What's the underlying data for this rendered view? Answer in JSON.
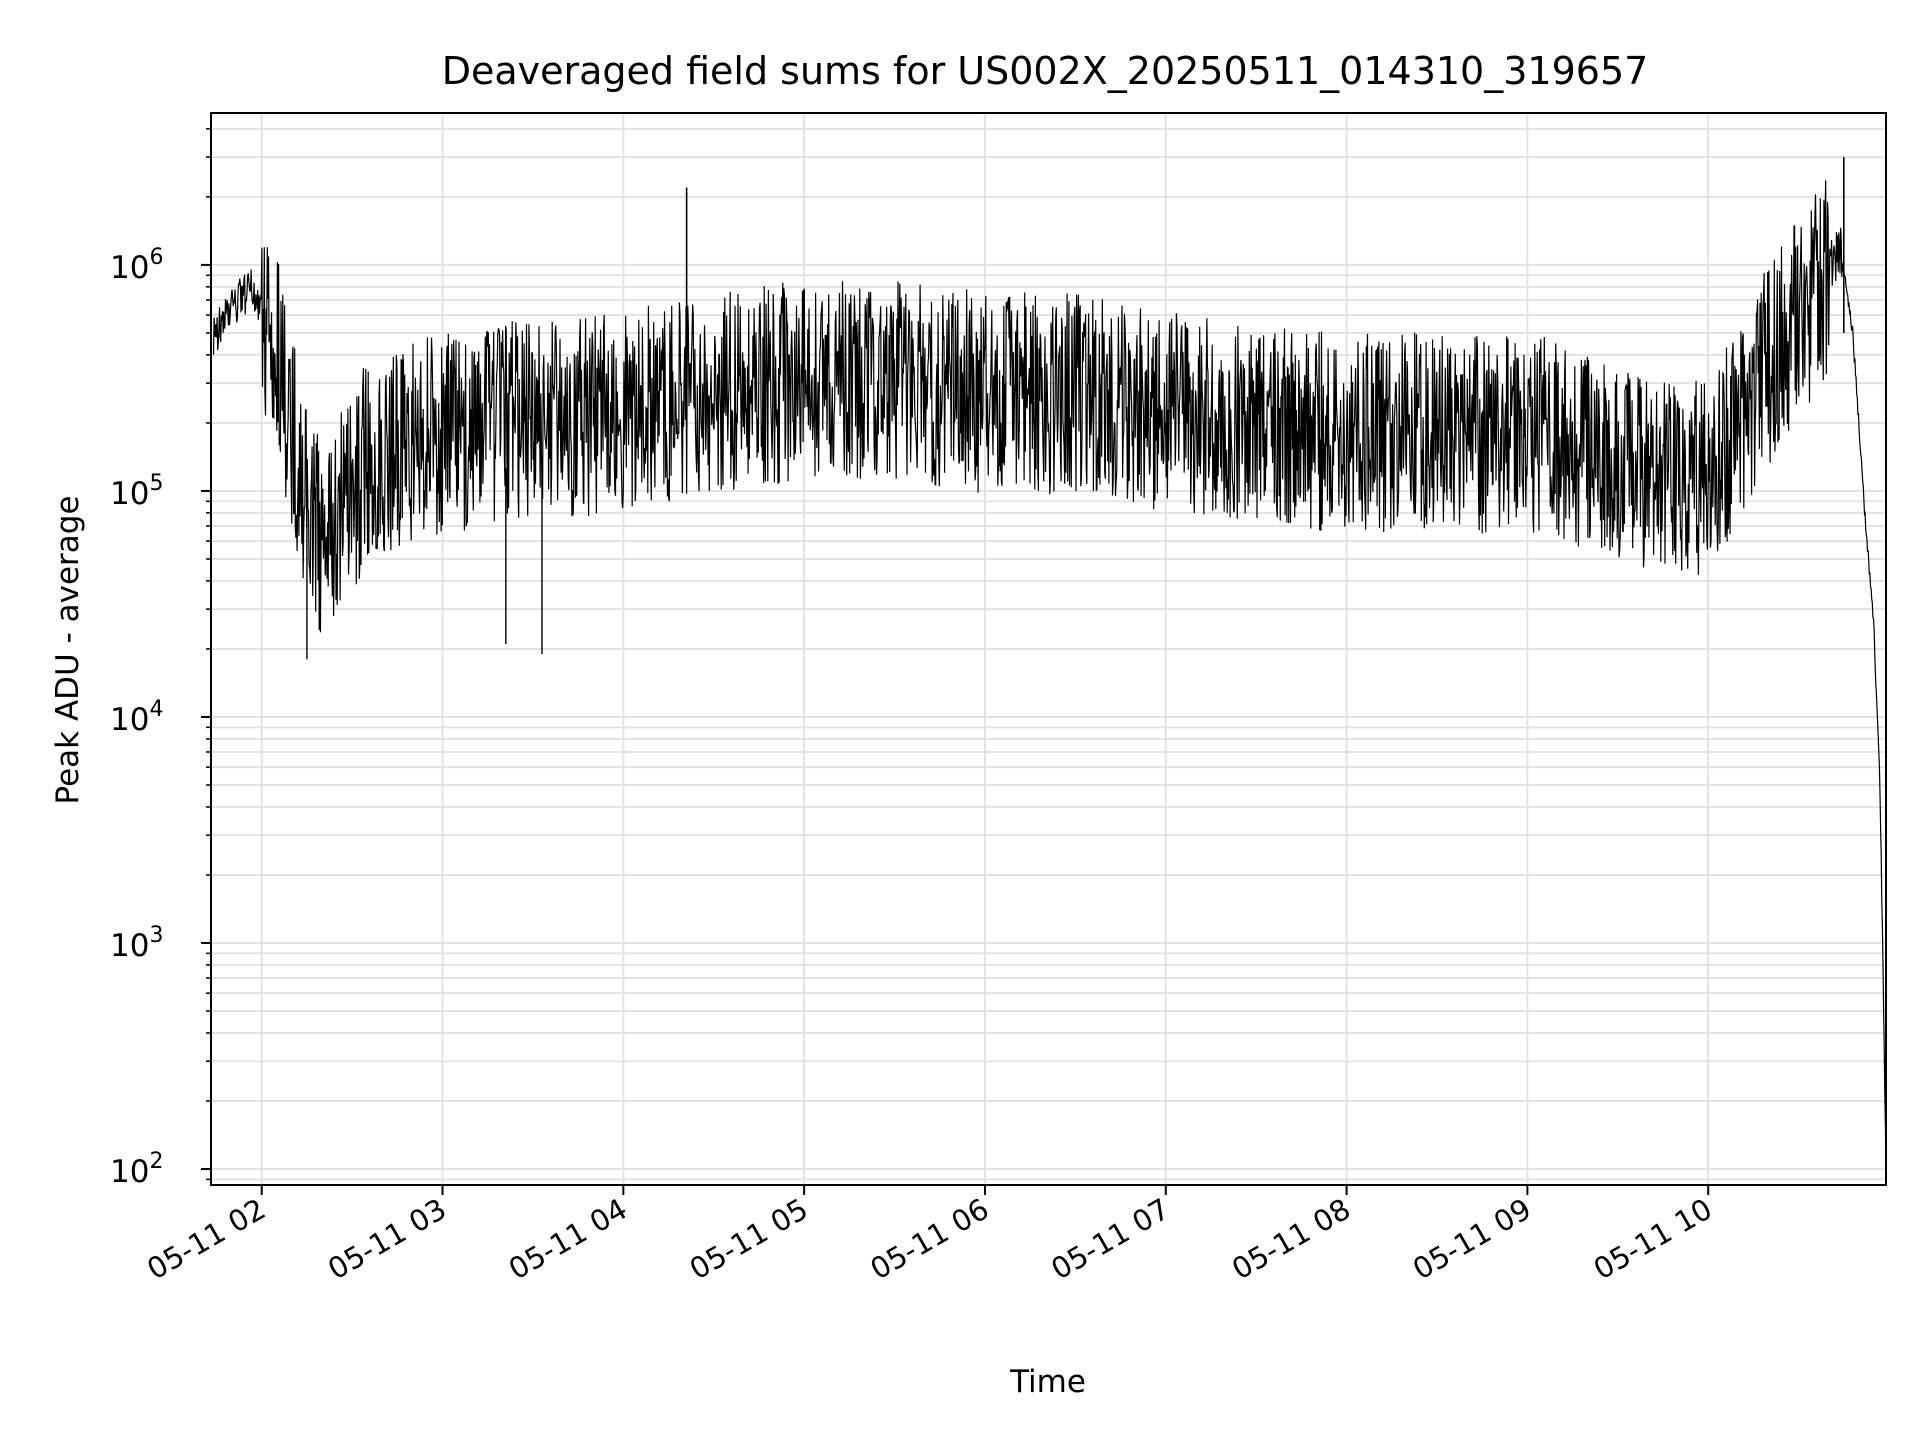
{
  "chart_data": {
    "type": "line",
    "title": "Deaveraged field sums for US002X_20250511_014310_319657",
    "xlabel": "Time",
    "ylabel": "Peak ADU - average",
    "y_scale": "log",
    "ylim": [
      85,
      4700000
    ],
    "xlim": [
      "2025-05-11 01:43:10",
      "2025-05-11 10:59:00"
    ],
    "grid": true,
    "line_color": "#000000",
    "x_ticks": [
      "05-11 02",
      "05-11 03",
      "05-11 04",
      "05-11 05",
      "05-11 06",
      "05-11 07",
      "05-11 08",
      "05-11 09",
      "05-11 10"
    ],
    "y_ticks": [
      100,
      1000,
      10000,
      100000,
      1000000
    ],
    "y_tick_labels": [
      {
        "base": "10",
        "exp": "2"
      },
      {
        "base": "10",
        "exp": "3"
      },
      {
        "base": "10",
        "exp": "4"
      },
      {
        "base": "10",
        "exp": "5"
      },
      {
        "base": "10",
        "exp": "6"
      }
    ],
    "series": [
      {
        "x": [
          "2025-05-11 01:44",
          "2025-05-11 01:50",
          "2025-05-11 01:56",
          "2025-05-11 02:01",
          "2025-05-11 02:06",
          "2025-05-11 02:12",
          "2025-05-11 02:20",
          "2025-05-11 02:35",
          "2025-05-11 03:00",
          "2025-05-11 03:30",
          "2025-05-11 04:00",
          "2025-05-11 04:30",
          "2025-05-11 05:00",
          "2025-05-11 05:30",
          "2025-05-11 06:00",
          "2025-05-11 06:30",
          "2025-05-11 07:00",
          "2025-05-11 07:30",
          "2025-05-11 08:00",
          "2025-05-11 08:30",
          "2025-05-11 09:00",
          "2025-05-11 09:30",
          "2025-05-11 10:00",
          "2025-05-11 10:20",
          "2025-05-11 10:44",
          "2025-05-11 10:48",
          "2025-05-11 10:52",
          "2025-05-11 10:55",
          "2025-05-11 10:57",
          "2025-05-11 10:58",
          "2025-05-11 10:59"
        ],
        "y": [
          500000,
          650000,
          800000,
          650000,
          400000,
          150000,
          60000,
          150000,
          200000,
          230000,
          250000,
          300000,
          350000,
          350000,
          300000,
          300000,
          250000,
          220000,
          200000,
          200000,
          200000,
          150000,
          120000,
          400000,
          1200000,
          500000,
          80000,
          25000,
          5000,
          800,
          100
        ],
        "peaks": [
          {
            "x": "2025-05-11 04:21",
            "y": 2200000
          },
          {
            "x": "2025-05-11 10:45",
            "y": 3000000
          }
        ],
        "troughs": [
          {
            "x": "2025-05-11 02:15",
            "y": 18000
          },
          {
            "x": "2025-05-11 03:33",
            "y": 19000
          },
          {
            "x": "2025-05-11 03:21",
            "y": 21000
          }
        ]
      }
    ]
  }
}
